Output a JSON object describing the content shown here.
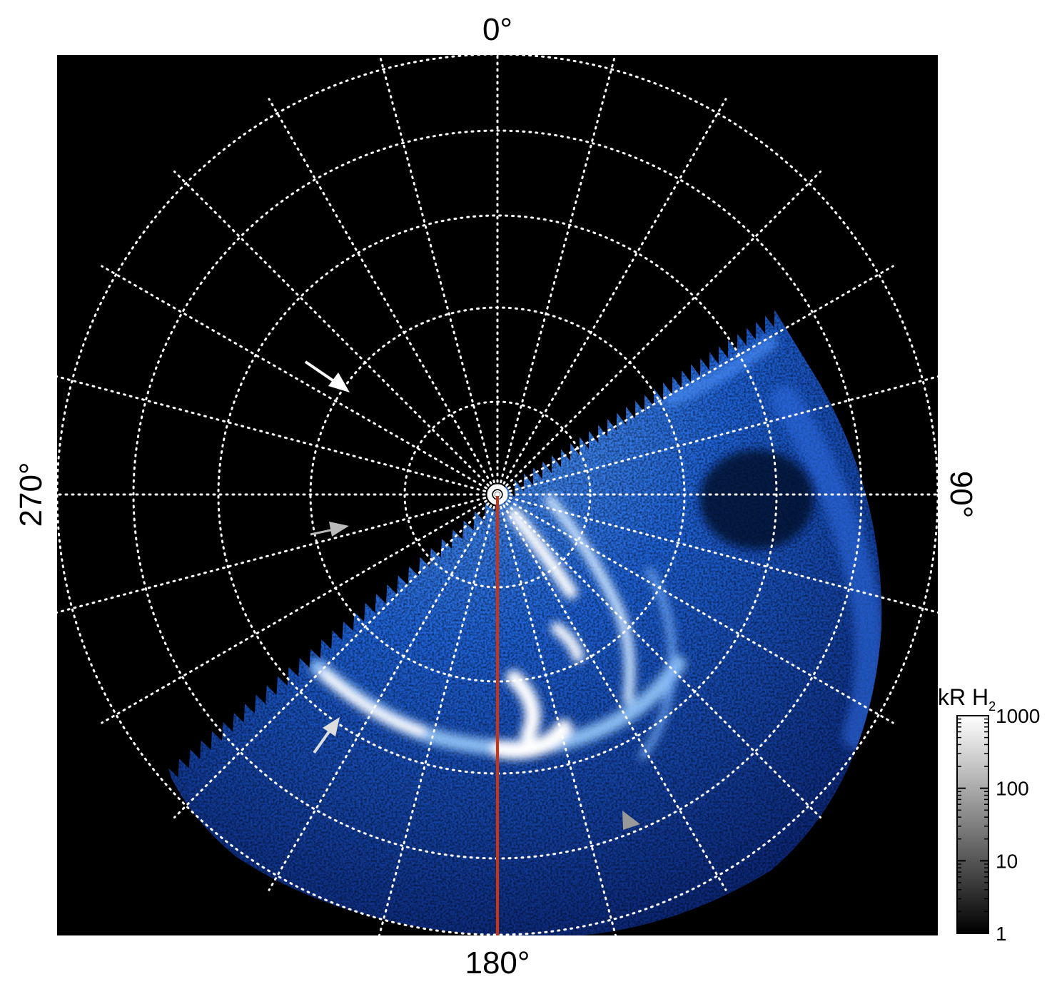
{
  "labels": {
    "top": "0°",
    "right": "90°",
    "bottom": "180°",
    "left": "270°"
  },
  "colorbar": {
    "title": "kR H",
    "title_subscript": "2",
    "scale": "log",
    "range": [
      1,
      1000
    ],
    "ticks": [
      {
        "value": 1000,
        "label": "1000"
      },
      {
        "value": 100,
        "label": "100"
      },
      {
        "value": 10,
        "label": "10"
      },
      {
        "value": 1,
        "label": "1"
      }
    ]
  },
  "colors": {
    "background": "#000000",
    "grid": "#ffffff",
    "aurora_low": "#0a2a8a",
    "aurora_mid": "#1e6fe6",
    "aurora_high": "#ffffff",
    "meridian_line": "#cc3311",
    "arrow_primary": "#ffffff",
    "arrow_secondary": "#bbbbbb",
    "arrowhead_marker": "#999999"
  },
  "icons": {
    "pole_marker": "bullseye-icon",
    "arrow": "arrow-icon",
    "marker": "triangle-marker-icon"
  }
}
